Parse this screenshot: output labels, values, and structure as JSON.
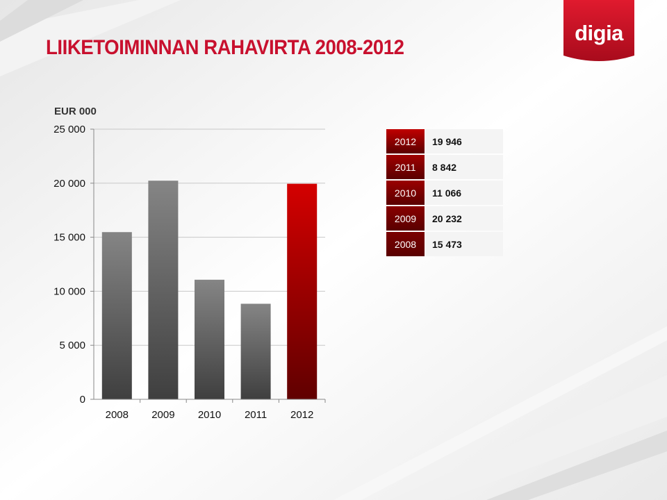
{
  "title": "LIIKETOIMINNAN RAHAVIRTA 2008-2012",
  "logo_text": "digia",
  "colors": {
    "brand_red": "#c8102e",
    "bar_gray": "#6e6e6e",
    "bar_highlight": "#c00000"
  },
  "table": {
    "rows": [
      {
        "year": "2012",
        "value": "19 946"
      },
      {
        "year": "2011",
        "value": "8 842"
      },
      {
        "year": "2010",
        "value": "11 066"
      },
      {
        "year": "2009",
        "value": "20 232"
      },
      {
        "year": "2008",
        "value": "15 473"
      }
    ]
  },
  "chart_data": {
    "type": "bar",
    "title": "",
    "unit_label": "EUR 000",
    "categories": [
      "2008",
      "2009",
      "2010",
      "2011",
      "2012"
    ],
    "values": [
      15473,
      20232,
      11066,
      8842,
      19946
    ],
    "highlight_category": "2012",
    "ylim": [
      0,
      25000
    ],
    "yticks": [
      0,
      5000,
      10000,
      15000,
      20000,
      25000
    ],
    "ytick_labels": [
      "0",
      "5 000",
      "10 000",
      "15 000",
      "20 000",
      "25 000"
    ],
    "xlabel": "",
    "ylabel": "",
    "grid": false,
    "legend": "none"
  }
}
